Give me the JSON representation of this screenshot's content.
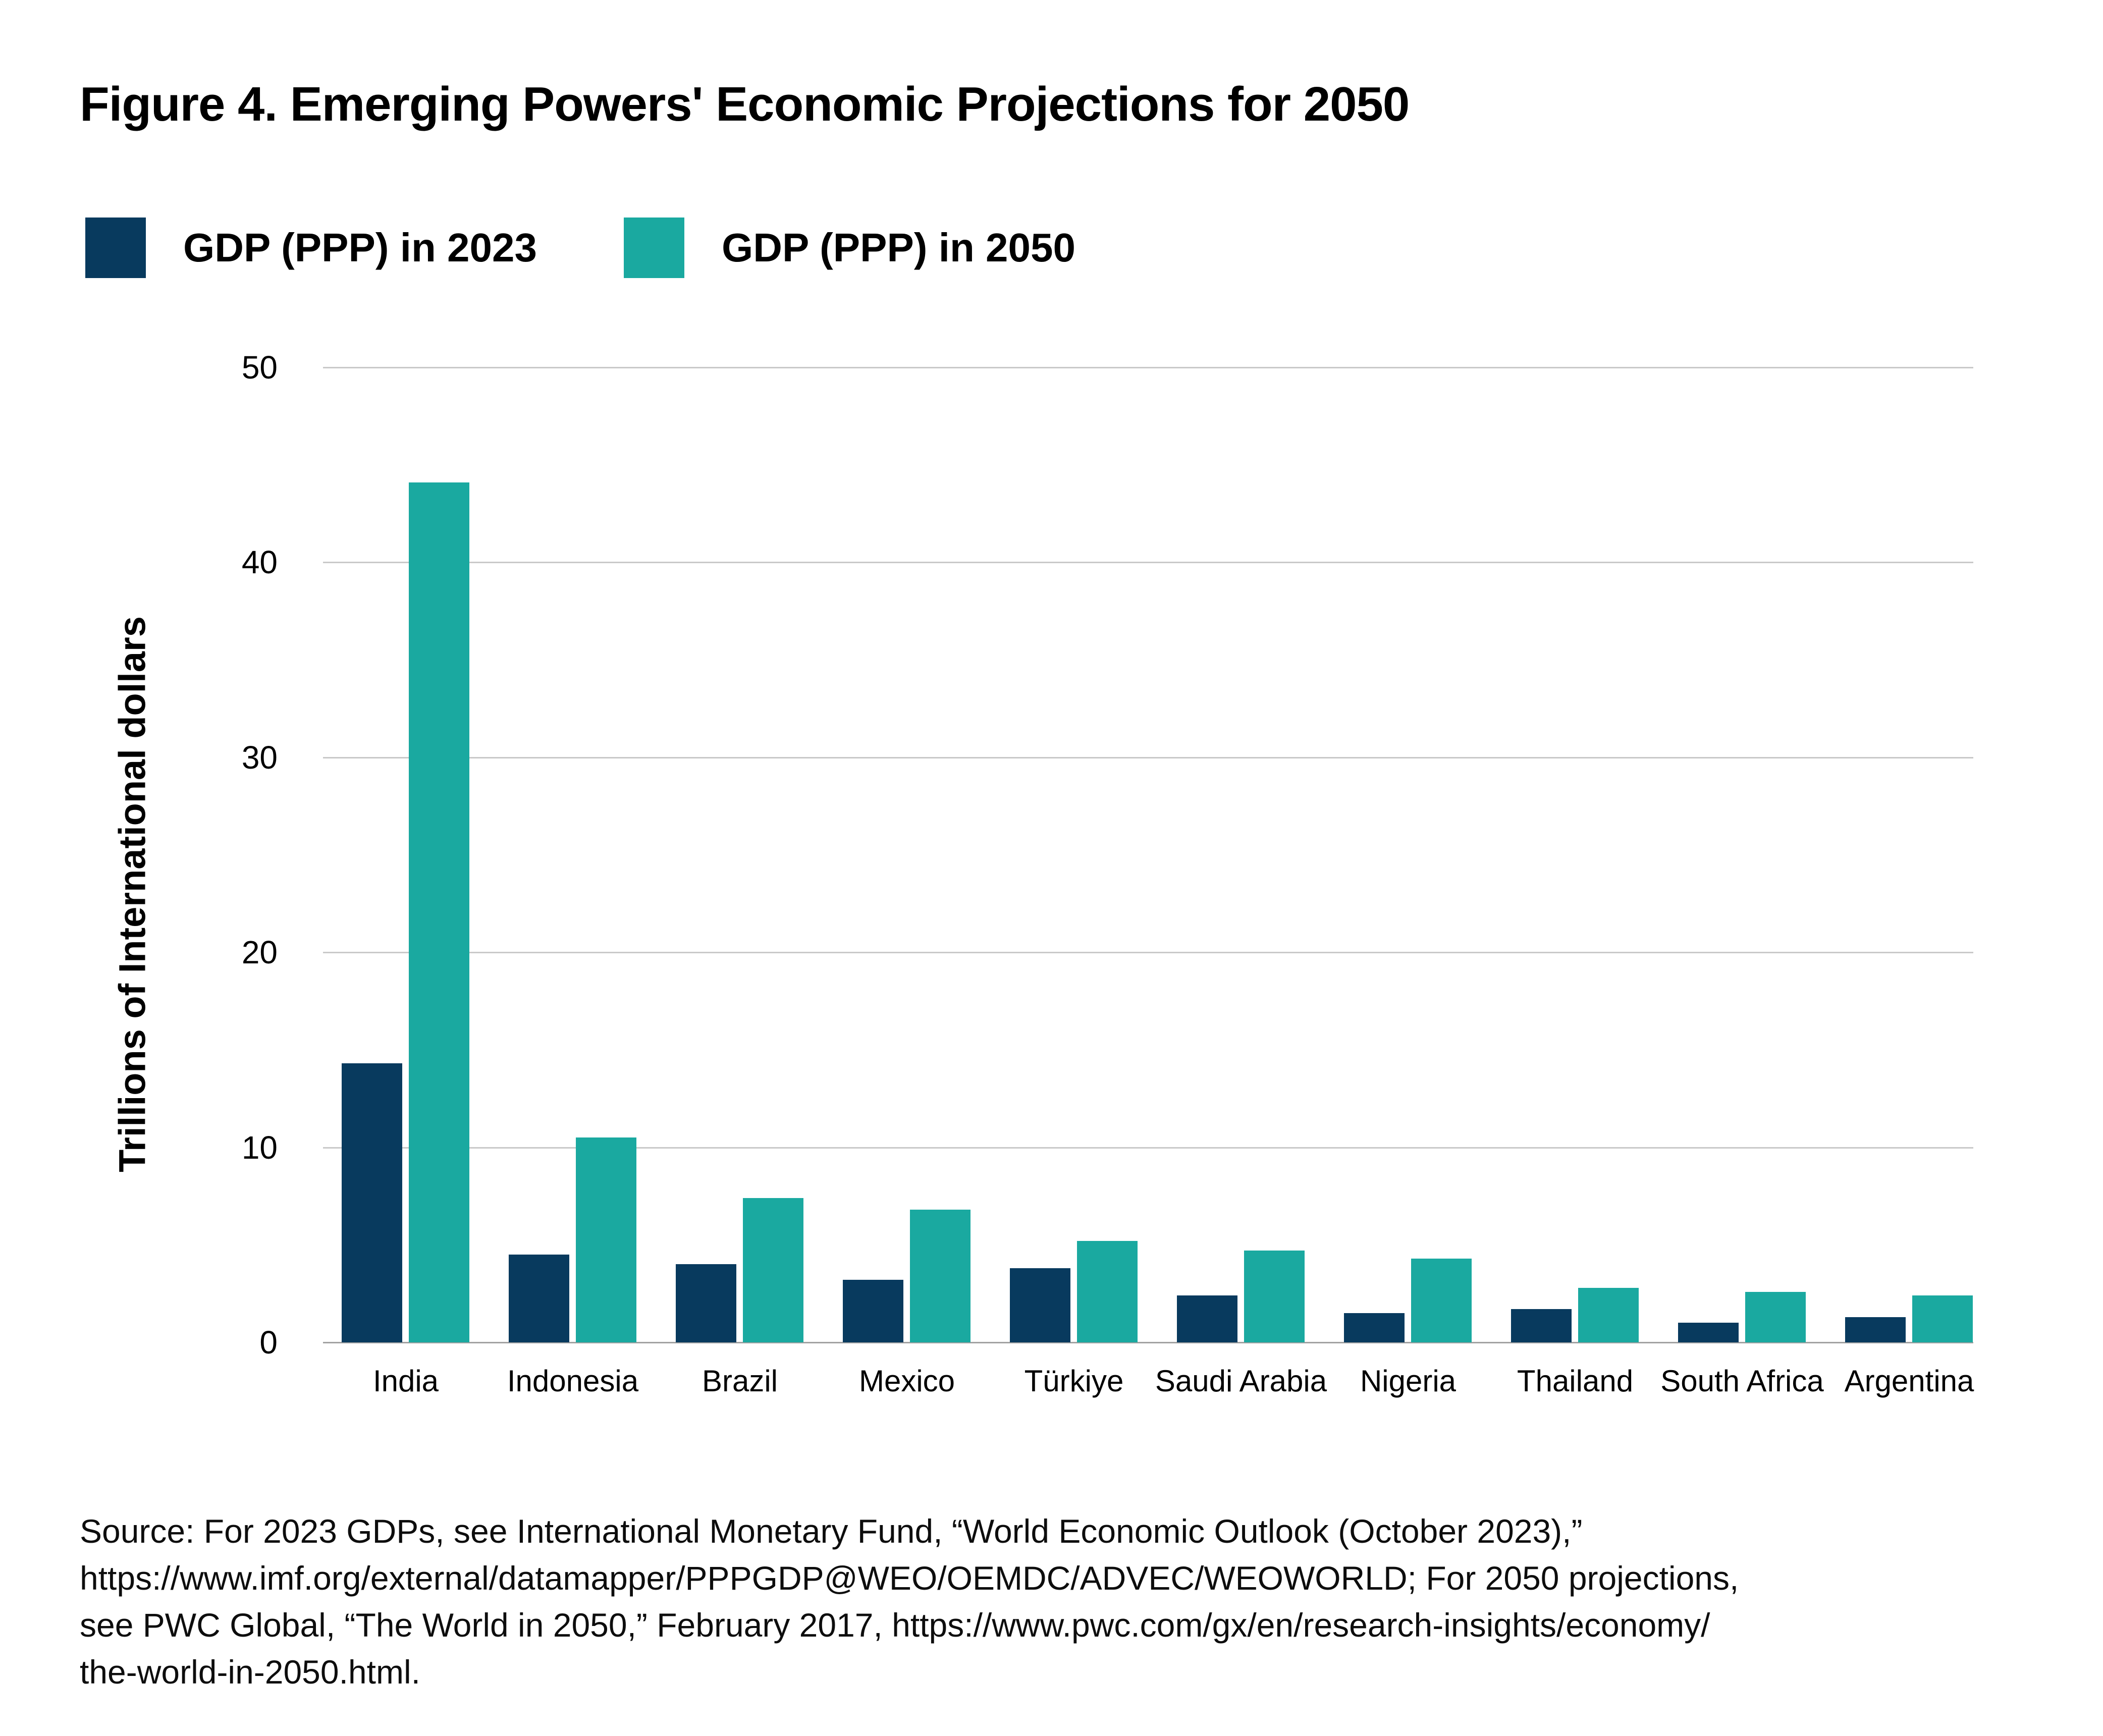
{
  "title": "Figure 4. Emerging Powers' Economic Projections for 2050",
  "legend": [
    {
      "label": "GDP (PPP) in 2023",
      "color": "#083a5e"
    },
    {
      "label": "GDP (PPP) in 2050",
      "color": "#1aa9a0"
    }
  ],
  "chart_data": {
    "type": "bar",
    "title": "Figure 4. Emerging Powers' Economic Projections for 2050",
    "xlabel": "",
    "ylabel": "Trillions of International dollars",
    "ylim": [
      0,
      50
    ],
    "yticks": [
      0,
      10,
      20,
      30,
      40,
      50
    ],
    "grid": "horizontal",
    "legend_position": "top-left",
    "categories": [
      "India",
      "Indonesia",
      "Brazil",
      "Mexico",
      "Türkiye",
      "Saudi Arabia",
      "Nigeria",
      "Thailand",
      "South Africa",
      "Argentina"
    ],
    "series": [
      {
        "name": "GDP (PPP) in 2023",
        "color": "#083a5e",
        "values": [
          14.3,
          4.5,
          4.0,
          3.2,
          3.8,
          2.4,
          1.5,
          1.7,
          1.0,
          1.3
        ]
      },
      {
        "name": "GDP (PPP) in 2050",
        "color": "#1aa9a0",
        "values": [
          44.1,
          10.5,
          7.4,
          6.8,
          5.2,
          4.7,
          4.3,
          2.8,
          2.6,
          2.4
        ]
      }
    ]
  },
  "source_lines": [
    "Source: For 2023 GDPs, see International Monetary Fund, “World Economic Outlook (October 2023),”",
    "https://www.imf.org/external/datamapper/PPPGDP@WEO/OEMDC/ADVEC/WEOWORLD; For 2050 projections,",
    "see PWC Global, “The World in 2050,” February 2017, https://www.pwc.com/gx/en/research-insights/economy/",
    "the-world-in-2050.html."
  ]
}
